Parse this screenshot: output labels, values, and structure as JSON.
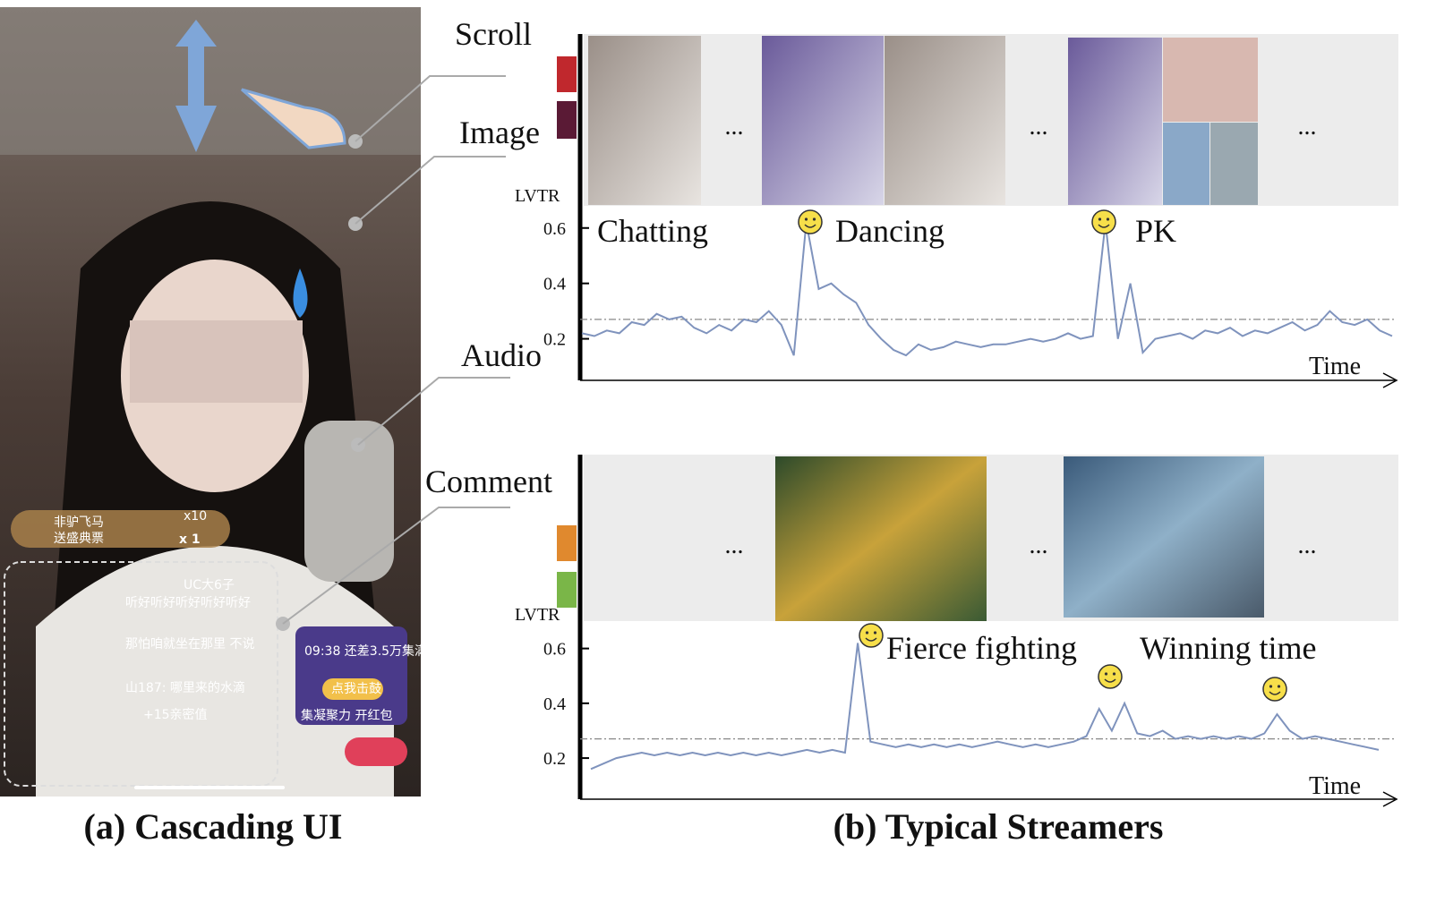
{
  "panel_a": {
    "labels": [
      "Scroll",
      "Image",
      "Audio",
      "Comment"
    ],
    "phone_texts": [
      "非驴飞马",
      "送盛典票",
      "x10",
      "x 1",
      "UC大6子",
      "听好听好听好听好听好",
      "那怕咱就坐在那里 不说",
      "山187: 哪里来的水滴",
      "+15亲密值",
      "09:38 还差3.5万集满",
      "点我击鼓",
      "集凝聚力 开红包"
    ],
    "caption": "(a) Cascading UI"
  },
  "panel_b": {
    "caption": "(b) Typical Streamers"
  },
  "chart_data": [
    {
      "type": "line",
      "y_label": "LVTR",
      "x_label": "Time",
      "ellipsis": "...",
      "color": "#7f93bd",
      "annotations": [
        "Chatting",
        "Dancing",
        "PK"
      ],
      "reference_line": 0.27,
      "ylim": [
        0.05,
        0.68
      ],
      "yticks": [
        0.2,
        0.4,
        0.6
      ],
      "categories": [
        null,
        null,
        null,
        null,
        null,
        null,
        null,
        null,
        null,
        null,
        null,
        null,
        null,
        null,
        null,
        null,
        null,
        null,
        null,
        null,
        null,
        null,
        null,
        null,
        null,
        null,
        null,
        null,
        null,
        null,
        null,
        null,
        null,
        null,
        null,
        null,
        null,
        null,
        null,
        null,
        null,
        null,
        null,
        null,
        null,
        null,
        null,
        null,
        null,
        null,
        null,
        null,
        null,
        null,
        null,
        null,
        null,
        null,
        null,
        null,
        null,
        null,
        null,
        null,
        null,
        null
      ],
      "values": [
        0.22,
        0.21,
        0.23,
        0.22,
        0.26,
        0.25,
        0.29,
        0.27,
        0.28,
        0.24,
        0.22,
        0.25,
        0.23,
        0.27,
        0.26,
        0.3,
        0.25,
        0.14,
        0.62,
        0.38,
        0.4,
        0.36,
        0.33,
        0.25,
        0.2,
        0.16,
        0.14,
        0.18,
        0.16,
        0.17,
        0.19,
        0.18,
        0.17,
        0.18,
        0.18,
        0.19,
        0.2,
        0.19,
        0.2,
        0.22,
        0.2,
        0.21,
        0.62,
        0.2,
        0.4,
        0.15,
        0.2,
        0.21,
        0.22,
        0.2,
        0.23,
        0.22,
        0.24,
        0.21,
        0.23,
        0.22,
        0.24,
        0.26,
        0.23,
        0.25,
        0.3,
        0.26,
        0.25,
        0.27,
        0.23,
        0.21
      ]
    },
    {
      "type": "line",
      "y_label": "LVTR",
      "x_label": "Time",
      "ellipsis": "...",
      "color": "#7f93bd",
      "annotations": [
        "Fierce fighting",
        "Winning time"
      ],
      "reference_line": 0.27,
      "ylim": [
        0.05,
        0.7
      ],
      "yticks": [
        0.2,
        0.4,
        0.6
      ],
      "categories": [
        null,
        null,
        null,
        null,
        null,
        null,
        null,
        null,
        null,
        null,
        null,
        null,
        null,
        null,
        null,
        null,
        null,
        null,
        null,
        null,
        null,
        null,
        null,
        null,
        null,
        null,
        null,
        null,
        null,
        null,
        null,
        null,
        null,
        null,
        null,
        null,
        null,
        null,
        null,
        null,
        null,
        null,
        null,
        null,
        null,
        null,
        null,
        null,
        null,
        null,
        null,
        null,
        null,
        null,
        null,
        null,
        null,
        null,
        null,
        null,
        null,
        null,
        null
      ],
      "values": [
        0.16,
        0.18,
        0.2,
        0.21,
        0.22,
        0.21,
        0.22,
        0.21,
        0.22,
        0.21,
        0.22,
        0.21,
        0.22,
        0.21,
        0.22,
        0.21,
        0.22,
        0.23,
        0.22,
        0.23,
        0.22,
        0.62,
        0.26,
        0.25,
        0.24,
        0.25,
        0.24,
        0.25,
        0.24,
        0.25,
        0.24,
        0.25,
        0.26,
        0.25,
        0.24,
        0.25,
        0.24,
        0.25,
        0.26,
        0.28,
        0.38,
        0.3,
        0.4,
        0.29,
        0.28,
        0.3,
        0.27,
        0.28,
        0.27,
        0.28,
        0.27,
        0.28,
        0.27,
        0.29,
        0.36,
        0.3,
        0.27,
        0.28,
        0.27,
        0.26,
        0.25,
        0.24,
        0.23
      ]
    }
  ]
}
